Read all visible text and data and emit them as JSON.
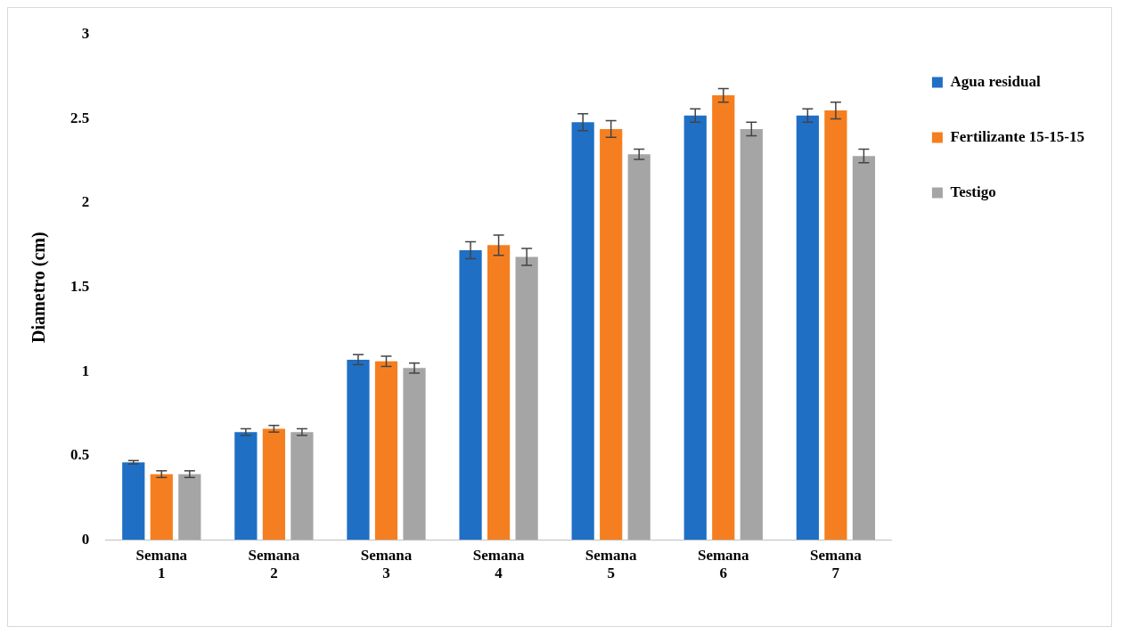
{
  "chart_data": {
    "type": "bar",
    "ylabel": "Diametro (cm)",
    "categories": [
      "Semana 1",
      "Semana 2",
      "Semana 3",
      "Semana 4",
      "Semana 5",
      "Semana 6",
      "Semana 7"
    ],
    "series": [
      {
        "name": "Agua residual",
        "color": "#1f6fc5",
        "values": [
          0.46,
          0.64,
          1.07,
          1.72,
          2.48,
          2.52,
          2.52
        ],
        "errors": [
          0.01,
          0.02,
          0.03,
          0.05,
          0.05,
          0.04,
          0.04
        ]
      },
      {
        "name": "Fertilizante 15-15-15",
        "color": "#f57f20",
        "values": [
          0.39,
          0.66,
          1.06,
          1.75,
          2.44,
          2.64,
          2.55
        ],
        "errors": [
          0.02,
          0.02,
          0.03,
          0.06,
          0.05,
          0.04,
          0.05
        ]
      },
      {
        "name": "Testigo",
        "color": "#a5a5a5",
        "values": [
          0.39,
          0.64,
          1.02,
          1.68,
          2.29,
          2.44,
          2.28
        ],
        "errors": [
          0.02,
          0.02,
          0.03,
          0.05,
          0.03,
          0.04,
          0.04
        ]
      }
    ],
    "ylim": [
      0,
      3
    ],
    "yticks": [
      0,
      0.5,
      1,
      1.5,
      2,
      2.5,
      3
    ],
    "grid": false,
    "legend": "right"
  }
}
